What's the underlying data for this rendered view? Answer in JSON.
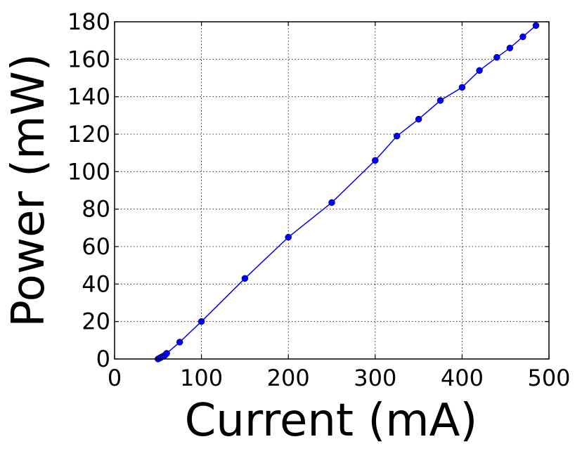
{
  "chart_data": {
    "type": "line",
    "title": "",
    "xlabel": "Current (mA)",
    "ylabel": "Power (mW)",
    "xlim": [
      0,
      500
    ],
    "ylim": [
      0,
      180
    ],
    "xticks": [
      0,
      100,
      200,
      300,
      400,
      500
    ],
    "yticks": [
      0,
      20,
      40,
      60,
      80,
      100,
      120,
      140,
      160,
      180
    ],
    "xtick_labels": [
      "0",
      "100",
      "200",
      "300",
      "400",
      "500"
    ],
    "ytick_labels": [
      "0",
      "20",
      "40",
      "60",
      "80",
      "100",
      "120",
      "140",
      "160",
      "180"
    ],
    "grid": true,
    "legend": "none",
    "series": [
      {
        "color": "#0000ff",
        "marker": "circle",
        "x": [
          50,
          52,
          54,
          56,
          58,
          60,
          75,
          100,
          150,
          200,
          250,
          300,
          325,
          350,
          375,
          400,
          420,
          440,
          455,
          470,
          485
        ],
        "y": [
          0,
          0.5,
          1,
          1.5,
          2,
          3,
          9,
          20,
          43,
          65,
          83.5,
          106,
          119,
          128,
          138,
          145,
          154,
          161,
          166,
          172,
          178
        ]
      }
    ]
  }
}
